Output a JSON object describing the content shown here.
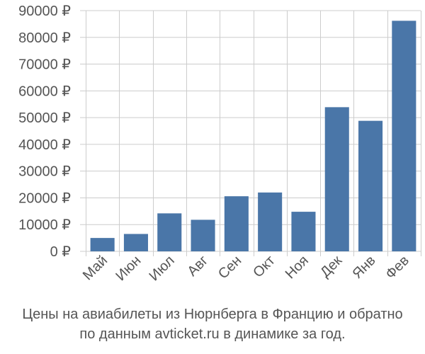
{
  "chart_data": {
    "type": "bar",
    "categories": [
      "Май",
      "Июн",
      "Июл",
      "Авг",
      "Сен",
      "Окт",
      "Ноя",
      "Дек",
      "Янв",
      "Фев"
    ],
    "values": [
      5000,
      6500,
      14200,
      11800,
      20600,
      22000,
      14800,
      53900,
      48800,
      86200
    ],
    "ylim": [
      0,
      90000
    ],
    "yticks": [
      0,
      10000,
      20000,
      30000,
      40000,
      50000,
      60000,
      70000,
      80000,
      90000
    ],
    "ytick_labels": [
      "0 ₽",
      "10000 ₽",
      "20000 ₽",
      "30000 ₽",
      "40000 ₽",
      "50000 ₽",
      "60000 ₽",
      "70000 ₽",
      "80000 ₽",
      "90000 ₽"
    ],
    "grid": true,
    "bar_color": "#4a76a8",
    "caption_line1": "Цены на авиабилеты из Нюрнберга в Францию и обратно",
    "caption_line2": "по данным avticket.ru в динамике за год."
  }
}
